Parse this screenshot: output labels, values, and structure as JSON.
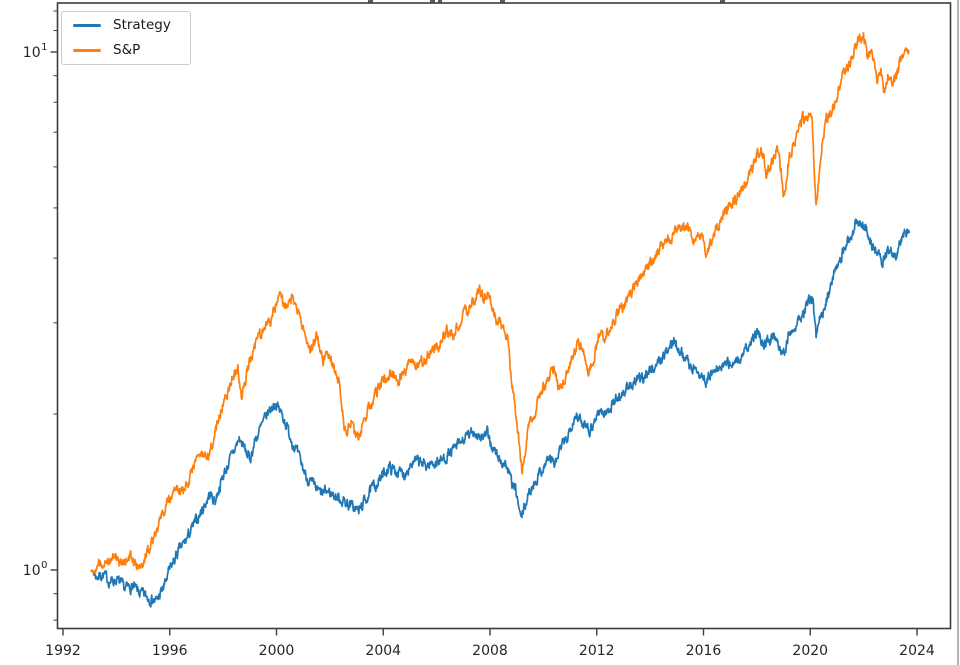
{
  "figure": {
    "background_color": "#ffffff",
    "axes_edge_color": "#3d3d3d",
    "tick_label_color": "#262626",
    "note_top": "figure title cropped off at top edge; only letter descenders visible"
  },
  "legend": {
    "position": "upper-left",
    "entries": [
      {
        "label": "Strategy",
        "color": "#1f77b4"
      },
      {
        "label": "S&P",
        "color": "#ff7f0e"
      }
    ]
  },
  "chart_data": {
    "type": "line",
    "title": "",
    "xlabel": "",
    "ylabel": "",
    "y_scale": "log",
    "grid": false,
    "legend_position": "upper left",
    "xlim": [
      1991.8,
      2025.2
    ],
    "ylim": [
      0.77,
      12.4
    ],
    "x_ticks": [
      1992,
      1996,
      2000,
      2004,
      2008,
      2012,
      2016,
      2020,
      2024
    ],
    "y_major_ticks": [
      {
        "value": 1,
        "base": "10",
        "exponent": "0"
      },
      {
        "value": 10,
        "base": "10",
        "exponent": "1"
      }
    ],
    "y_minor_ticks": [
      0.8,
      0.9,
      2,
      3,
      4,
      5,
      6,
      7,
      8,
      9,
      11,
      12
    ],
    "series": [
      {
        "name": "Strategy",
        "color": "#1f77b4",
        "points": [
          [
            1993.05,
            1.0
          ],
          [
            1993.25,
            0.97
          ],
          [
            1993.5,
            0.98
          ],
          [
            1993.75,
            0.95
          ],
          [
            1994.0,
            0.96
          ],
          [
            1994.3,
            0.92
          ],
          [
            1994.6,
            0.93
          ],
          [
            1994.9,
            0.9
          ],
          [
            1995.2,
            0.885
          ],
          [
            1995.5,
            0.87
          ],
          [
            1995.75,
            0.92
          ],
          [
            1996.0,
            1.0
          ],
          [
            1996.3,
            1.08
          ],
          [
            1996.6,
            1.14
          ],
          [
            1996.9,
            1.22
          ],
          [
            1997.2,
            1.3
          ],
          [
            1997.5,
            1.4
          ],
          [
            1997.7,
            1.36
          ],
          [
            1998.0,
            1.52
          ],
          [
            1998.3,
            1.65
          ],
          [
            1998.6,
            1.79
          ],
          [
            1998.8,
            1.72
          ],
          [
            1999.0,
            1.63
          ],
          [
            1999.2,
            1.78
          ],
          [
            1999.45,
            1.9
          ],
          [
            1999.7,
            2.02
          ],
          [
            1999.95,
            2.1
          ],
          [
            2000.15,
            2.02
          ],
          [
            2000.3,
            1.95
          ],
          [
            2000.5,
            1.82
          ],
          [
            2000.7,
            1.72
          ],
          [
            2000.9,
            1.62
          ],
          [
            2001.1,
            1.52
          ],
          [
            2001.3,
            1.47
          ],
          [
            2001.5,
            1.43
          ],
          [
            2001.7,
            1.4
          ],
          [
            2001.9,
            1.42
          ],
          [
            2002.1,
            1.4
          ],
          [
            2002.4,
            1.37
          ],
          [
            2002.7,
            1.34
          ],
          [
            2002.9,
            1.32
          ],
          [
            2003.1,
            1.3
          ],
          [
            2003.3,
            1.36
          ],
          [
            2003.6,
            1.44
          ],
          [
            2003.9,
            1.5
          ],
          [
            2004.2,
            1.58
          ],
          [
            2004.5,
            1.55
          ],
          [
            2004.8,
            1.53
          ],
          [
            2005.0,
            1.6
          ],
          [
            2005.3,
            1.62
          ],
          [
            2005.6,
            1.59
          ],
          [
            2005.9,
            1.61
          ],
          [
            2006.2,
            1.63
          ],
          [
            2006.5,
            1.68
          ],
          [
            2006.8,
            1.74
          ],
          [
            2007.1,
            1.8
          ],
          [
            2007.4,
            1.85
          ],
          [
            2007.7,
            1.8
          ],
          [
            2007.9,
            1.83
          ],
          [
            2008.1,
            1.72
          ],
          [
            2008.4,
            1.62
          ],
          [
            2008.6,
            1.6
          ],
          [
            2008.8,
            1.48
          ],
          [
            2009.0,
            1.4
          ],
          [
            2009.15,
            1.25
          ],
          [
            2009.35,
            1.35
          ],
          [
            2009.55,
            1.44
          ],
          [
            2009.8,
            1.52
          ],
          [
            2010.0,
            1.58
          ],
          [
            2010.2,
            1.65
          ],
          [
            2010.45,
            1.6
          ],
          [
            2010.65,
            1.72
          ],
          [
            2010.9,
            1.8
          ],
          [
            2011.1,
            1.95
          ],
          [
            2011.25,
            2.01
          ],
          [
            2011.45,
            1.9
          ],
          [
            2011.6,
            1.94
          ],
          [
            2011.75,
            1.86
          ],
          [
            2011.95,
            1.96
          ],
          [
            2012.1,
            2.04
          ],
          [
            2012.3,
            1.99
          ],
          [
            2012.6,
            2.1
          ],
          [
            2012.9,
            2.18
          ],
          [
            2013.2,
            2.25
          ],
          [
            2013.5,
            2.31
          ],
          [
            2013.8,
            2.38
          ],
          [
            2014.1,
            2.45
          ],
          [
            2014.4,
            2.55
          ],
          [
            2014.65,
            2.65
          ],
          [
            2014.9,
            2.78
          ],
          [
            2015.1,
            2.68
          ],
          [
            2015.35,
            2.55
          ],
          [
            2015.6,
            2.45
          ],
          [
            2015.85,
            2.4
          ],
          [
            2016.1,
            2.32
          ],
          [
            2016.35,
            2.4
          ],
          [
            2016.6,
            2.45
          ],
          [
            2016.85,
            2.5
          ],
          [
            2017.1,
            2.52
          ],
          [
            2017.35,
            2.55
          ],
          [
            2017.6,
            2.65
          ],
          [
            2017.85,
            2.78
          ],
          [
            2018.05,
            2.91
          ],
          [
            2018.25,
            2.72
          ],
          [
            2018.45,
            2.78
          ],
          [
            2018.65,
            2.85
          ],
          [
            2018.85,
            2.72
          ],
          [
            2019.0,
            2.62
          ],
          [
            2019.2,
            2.85
          ],
          [
            2019.45,
            3.0
          ],
          [
            2019.7,
            3.1
          ],
          [
            2019.95,
            3.28
          ],
          [
            2020.1,
            3.36
          ],
          [
            2020.22,
            2.8
          ],
          [
            2020.4,
            3.1
          ],
          [
            2020.6,
            3.32
          ],
          [
            2020.8,
            3.55
          ],
          [
            2021.0,
            3.9
          ],
          [
            2021.2,
            4.1
          ],
          [
            2021.45,
            4.35
          ],
          [
            2021.65,
            4.6
          ],
          [
            2021.8,
            4.7
          ],
          [
            2022.0,
            4.6
          ],
          [
            2022.15,
            4.5
          ],
          [
            2022.3,
            4.25
          ],
          [
            2022.5,
            4.12
          ],
          [
            2022.7,
            3.96
          ],
          [
            2022.9,
            4.18
          ],
          [
            2023.1,
            4.12
          ],
          [
            2023.25,
            4.05
          ],
          [
            2023.45,
            4.4
          ],
          [
            2023.6,
            4.45
          ],
          [
            2023.72,
            4.55
          ]
        ]
      },
      {
        "name": "S&P",
        "color": "#ff7f0e",
        "points": [
          [
            1993.05,
            1.0
          ],
          [
            1993.2,
            0.99
          ],
          [
            1993.4,
            1.03
          ],
          [
            1993.7,
            1.05
          ],
          [
            1994.0,
            1.08
          ],
          [
            1994.2,
            1.02
          ],
          [
            1994.5,
            1.06
          ],
          [
            1994.75,
            1.03
          ],
          [
            1994.95,
            1.02
          ],
          [
            1995.2,
            1.1
          ],
          [
            1995.6,
            1.24
          ],
          [
            1996.0,
            1.38
          ],
          [
            1996.3,
            1.44
          ],
          [
            1996.5,
            1.41
          ],
          [
            1996.8,
            1.55
          ],
          [
            1997.1,
            1.68
          ],
          [
            1997.4,
            1.62
          ],
          [
            1997.7,
            1.85
          ],
          [
            1998.0,
            2.1
          ],
          [
            1998.3,
            2.3
          ],
          [
            1998.55,
            2.45
          ],
          [
            1998.7,
            2.15
          ],
          [
            1999.0,
            2.55
          ],
          [
            1999.3,
            2.8
          ],
          [
            1999.6,
            2.95
          ],
          [
            1999.8,
            3.05
          ],
          [
            2000.1,
            3.43
          ],
          [
            2000.3,
            3.2
          ],
          [
            2000.55,
            3.35
          ],
          [
            2000.9,
            3.1
          ],
          [
            2001.1,
            2.8
          ],
          [
            2001.25,
            2.58
          ],
          [
            2001.5,
            2.85
          ],
          [
            2001.75,
            2.55
          ],
          [
            2001.9,
            2.7
          ],
          [
            2002.1,
            2.5
          ],
          [
            2002.35,
            2.3
          ],
          [
            2002.6,
            1.81
          ],
          [
            2002.8,
            1.95
          ],
          [
            2003.0,
            1.78
          ],
          [
            2003.2,
            1.88
          ],
          [
            2003.5,
            2.08
          ],
          [
            2003.9,
            2.3
          ],
          [
            2004.3,
            2.4
          ],
          [
            2004.6,
            2.32
          ],
          [
            2004.95,
            2.5
          ],
          [
            2005.3,
            2.48
          ],
          [
            2005.7,
            2.6
          ],
          [
            2006.1,
            2.72
          ],
          [
            2006.4,
            2.9
          ],
          [
            2006.6,
            2.82
          ],
          [
            2007.0,
            3.1
          ],
          [
            2007.3,
            3.25
          ],
          [
            2007.6,
            3.5
          ],
          [
            2007.75,
            3.35
          ],
          [
            2007.9,
            3.43
          ],
          [
            2008.2,
            3.05
          ],
          [
            2008.4,
            3.0
          ],
          [
            2008.65,
            2.8
          ],
          [
            2008.8,
            2.35
          ],
          [
            2009.0,
            1.95
          ],
          [
            2009.1,
            1.75
          ],
          [
            2009.2,
            1.53
          ],
          [
            2009.4,
            1.85
          ],
          [
            2009.7,
            2.04
          ],
          [
            2009.95,
            2.22
          ],
          [
            2010.2,
            2.36
          ],
          [
            2010.4,
            2.45
          ],
          [
            2010.6,
            2.2
          ],
          [
            2010.85,
            2.4
          ],
          [
            2011.1,
            2.6
          ],
          [
            2011.3,
            2.75
          ],
          [
            2011.5,
            2.65
          ],
          [
            2011.7,
            2.35
          ],
          [
            2011.85,
            2.55
          ],
          [
            2012.0,
            2.7
          ],
          [
            2012.1,
            2.9
          ],
          [
            2012.3,
            2.8
          ],
          [
            2012.55,
            3.0
          ],
          [
            2012.9,
            3.18
          ],
          [
            2013.3,
            3.45
          ],
          [
            2013.7,
            3.7
          ],
          [
            2014.0,
            3.88
          ],
          [
            2014.3,
            4.12
          ],
          [
            2014.7,
            4.35
          ],
          [
            2015.1,
            4.6
          ],
          [
            2015.4,
            4.58
          ],
          [
            2015.7,
            4.3
          ],
          [
            2015.9,
            4.48
          ],
          [
            2016.1,
            4.15
          ],
          [
            2016.4,
            4.5
          ],
          [
            2016.8,
            4.95
          ],
          [
            2017.2,
            5.2
          ],
          [
            2017.6,
            5.6
          ],
          [
            2017.9,
            6.1
          ],
          [
            2018.15,
            6.55
          ],
          [
            2018.35,
            5.85
          ],
          [
            2018.55,
            6.1
          ],
          [
            2018.75,
            6.5
          ],
          [
            2018.9,
            5.95
          ],
          [
            2019.0,
            5.25
          ],
          [
            2019.2,
            6.2
          ],
          [
            2019.5,
            6.9
          ],
          [
            2019.7,
            7.4
          ],
          [
            2019.9,
            7.5
          ],
          [
            2020.05,
            7.75
          ],
          [
            2020.22,
            5.05
          ],
          [
            2020.4,
            6.4
          ],
          [
            2020.6,
            7.4
          ],
          [
            2020.75,
            7.6
          ],
          [
            2020.9,
            7.9
          ],
          [
            2021.1,
            8.6
          ],
          [
            2021.3,
            9.1
          ],
          [
            2021.5,
            9.6
          ],
          [
            2021.7,
            10.3
          ],
          [
            2021.9,
            10.6
          ],
          [
            2022.0,
            10.85
          ],
          [
            2022.15,
            9.7
          ],
          [
            2022.3,
            10.1
          ],
          [
            2022.5,
            8.9
          ],
          [
            2022.65,
            9.3
          ],
          [
            2022.78,
            8.2
          ],
          [
            2022.9,
            9.0
          ],
          [
            2023.1,
            8.6
          ],
          [
            2023.3,
            9.3
          ],
          [
            2023.5,
            10.1
          ],
          [
            2023.65,
            10.35
          ],
          [
            2023.72,
            10.2
          ]
        ]
      }
    ]
  }
}
